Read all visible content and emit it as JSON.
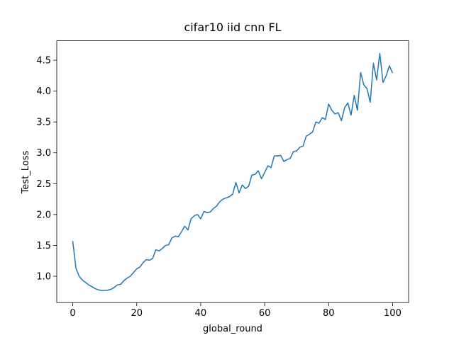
{
  "chart_data": {
    "type": "line",
    "title": "cifar10 iid cnn FL",
    "xlabel": "global_round",
    "ylabel": "Test_Loss",
    "x": [
      0,
      1,
      2,
      3,
      4,
      5,
      6,
      7,
      8,
      9,
      10,
      11,
      12,
      13,
      14,
      15,
      16,
      17,
      18,
      19,
      20,
      21,
      22,
      23,
      24,
      25,
      26,
      27,
      28,
      29,
      30,
      31,
      32,
      33,
      34,
      35,
      36,
      37,
      38,
      39,
      40,
      41,
      42,
      43,
      44,
      45,
      46,
      47,
      48,
      49,
      50,
      51,
      52,
      53,
      54,
      55,
      56,
      57,
      58,
      59,
      60,
      61,
      62,
      63,
      64,
      65,
      66,
      67,
      68,
      69,
      70,
      71,
      72,
      73,
      74,
      75,
      76,
      77,
      78,
      79,
      80,
      81,
      82,
      83,
      84,
      85,
      86,
      87,
      88,
      89,
      90,
      91,
      92,
      93,
      94,
      95,
      96,
      97,
      98,
      99,
      100
    ],
    "series": [
      {
        "color": "#1f77b4",
        "values": [
          1.57,
          1.13,
          1.0,
          0.94,
          0.9,
          0.86,
          0.83,
          0.8,
          0.78,
          0.77,
          0.77,
          0.775,
          0.79,
          0.82,
          0.86,
          0.87,
          0.93,
          0.97,
          1.0,
          1.06,
          1.12,
          1.15,
          1.22,
          1.27,
          1.26,
          1.29,
          1.43,
          1.41,
          1.45,
          1.5,
          1.51,
          1.62,
          1.65,
          1.64,
          1.72,
          1.81,
          1.75,
          1.93,
          1.98,
          2.0,
          1.93,
          2.05,
          2.03,
          2.04,
          2.1,
          2.14,
          2.21,
          2.25,
          2.27,
          2.29,
          2.33,
          2.52,
          2.35,
          2.48,
          2.42,
          2.46,
          2.64,
          2.65,
          2.71,
          2.58,
          2.68,
          2.79,
          2.76,
          2.95,
          2.95,
          2.96,
          2.86,
          2.89,
          2.91,
          3.02,
          3.03,
          3.09,
          3.11,
          3.27,
          3.3,
          3.34,
          3.5,
          3.48,
          3.57,
          3.54,
          3.79,
          3.69,
          3.63,
          3.65,
          3.52,
          3.73,
          3.81,
          3.61,
          3.93,
          3.69,
          4.3,
          4.1,
          4.04,
          3.82,
          4.45,
          4.18,
          4.61,
          4.14,
          4.25,
          4.41,
          4.29
        ]
      }
    ],
    "xlim": [
      -5,
      105
    ],
    "xticks": [
      0,
      20,
      40,
      60,
      80,
      100
    ],
    "ylim": [
      0.573,
      4.815
    ],
    "yticks": [
      {
        "value": 1,
        "label": "1.0"
      },
      {
        "value": 1.5,
        "label": "1.5"
      },
      {
        "value": 2,
        "label": "2.0"
      },
      {
        "value": 2.5,
        "label": "2.5"
      },
      {
        "value": 3,
        "label": "3.0"
      },
      {
        "value": 3.5,
        "label": "3.5"
      },
      {
        "value": 4,
        "label": "4.0"
      },
      {
        "value": 4.5,
        "label": "4.5"
      }
    ],
    "grid": false
  }
}
